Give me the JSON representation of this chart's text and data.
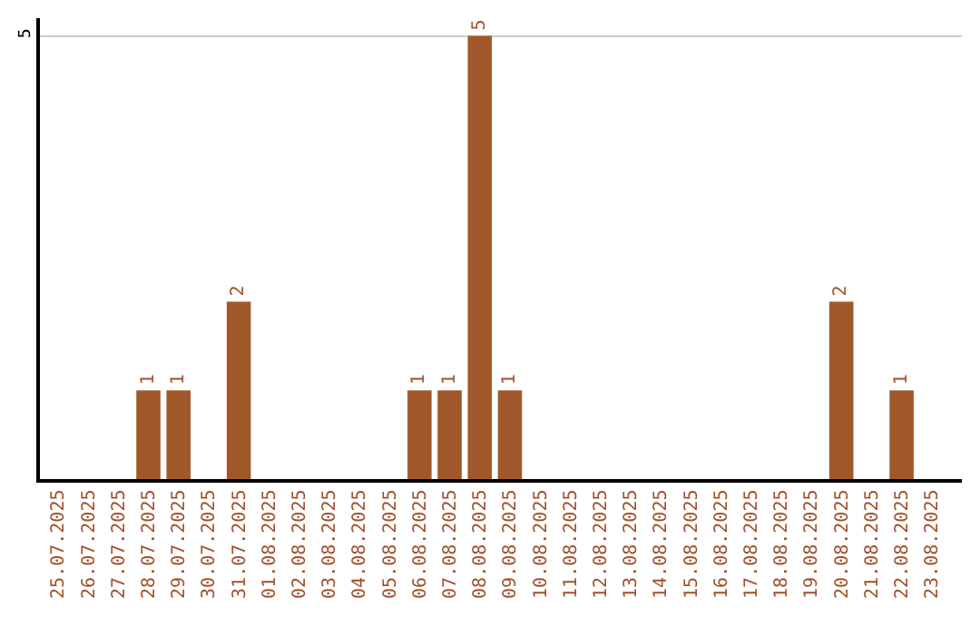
{
  "chart_data": {
    "type": "bar",
    "categories": [
      "25.07.2025",
      "26.07.2025",
      "27.07.2025",
      "28.07.2025",
      "29.07.2025",
      "30.07.2025",
      "31.07.2025",
      "01.08.2025",
      "02.08.2025",
      "03.08.2025",
      "04.08.2025",
      "05.08.2025",
      "06.08.2025",
      "07.08.2025",
      "08.08.2025",
      "09.08.2025",
      "10.08.2025",
      "11.08.2025",
      "12.08.2025",
      "13.08.2025",
      "14.08.2025",
      "15.08.2025",
      "16.08.2025",
      "17.08.2025",
      "18.08.2025",
      "19.08.2025",
      "20.08.2025",
      "21.08.2025",
      "22.08.2025",
      "23.08.2025"
    ],
    "values": [
      0,
      0,
      0,
      1,
      1,
      0,
      2,
      0,
      0,
      0,
      0,
      0,
      1,
      1,
      5,
      1,
      0,
      0,
      0,
      0,
      0,
      0,
      0,
      0,
      0,
      0,
      2,
      0,
      1,
      0
    ],
    "value_labels": [
      null,
      null,
      null,
      "1",
      "1",
      null,
      "2",
      null,
      null,
      null,
      null,
      null,
      "1",
      "1",
      "5",
      "1",
      null,
      null,
      null,
      null,
      null,
      null,
      null,
      null,
      null,
      null,
      "2",
      null,
      "1",
      null
    ],
    "color": "#a0582a",
    "ylim": [
      0,
      5.2
    ],
    "yticks": [
      5
    ],
    "grid": "y",
    "legend": false
  }
}
